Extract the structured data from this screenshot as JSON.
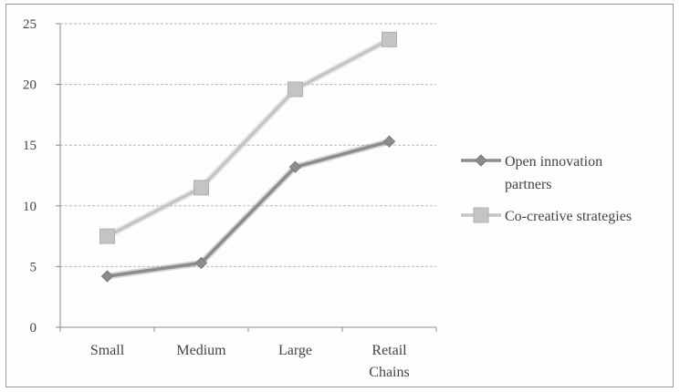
{
  "chart_data": {
    "type": "line",
    "title": "",
    "xlabel": "",
    "ylabel": "",
    "categories": [
      [
        "Small"
      ],
      [
        "Medium"
      ],
      [
        "Large"
      ],
      [
        "Retail",
        "Chains"
      ]
    ],
    "ylim": [
      0,
      25
    ],
    "yticks": [
      0,
      5,
      10,
      15,
      20,
      25
    ],
    "grid": true,
    "legend_position": "right",
    "series": [
      {
        "name": [
          "Open innovation",
          "partners"
        ],
        "values": [
          4.2,
          5.3,
          13.2,
          15.3
        ],
        "color": "#8c8c8c",
        "marker": "diamond"
      },
      {
        "name": [
          "Co-creative strategies"
        ],
        "values": [
          7.5,
          11.5,
          19.6,
          23.7
        ],
        "color": "#c4c4c4",
        "marker": "square"
      }
    ]
  }
}
